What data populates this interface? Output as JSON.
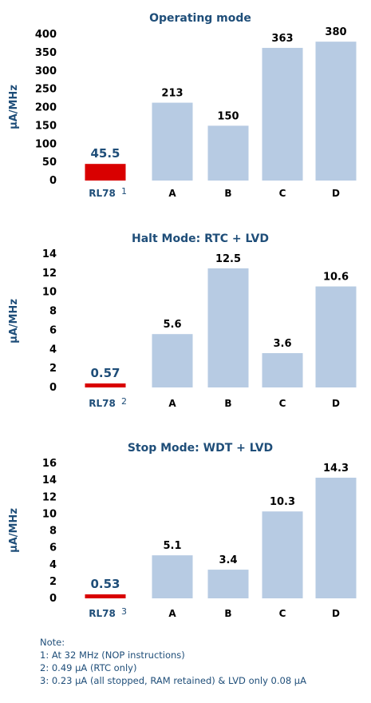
{
  "chart_data": [
    {
      "type": "bar",
      "title": "Operating mode",
      "ylabel": "µA/MHz",
      "ylim": [
        0,
        400
      ],
      "yticks": [
        0,
        50,
        100,
        150,
        200,
        250,
        300,
        350,
        400
      ],
      "categories": [
        "RL78",
        "A",
        "B",
        "C",
        "D"
      ],
      "category_footnotes": [
        "1",
        "",
        "",
        "",
        ""
      ],
      "values": [
        45.5,
        213,
        150,
        363,
        380
      ],
      "value_labels": [
        "45.5",
        "213",
        "150",
        "363",
        "380"
      ],
      "colors": [
        "#d90000",
        "#b7cbe3",
        "#b7cbe3",
        "#b7cbe3",
        "#b7cbe3"
      ],
      "grid": false,
      "legend": "none"
    },
    {
      "type": "bar",
      "title": "Halt Mode: RTC + LVD",
      "ylabel": "µA/MHz",
      "ylim": [
        0,
        14
      ],
      "yticks": [
        0,
        2,
        4,
        6,
        8,
        10,
        12,
        14
      ],
      "categories": [
        "RL78",
        "A",
        "B",
        "C",
        "D"
      ],
      "category_footnotes": [
        "2",
        "",
        "",
        "",
        ""
      ],
      "values": [
        0.57,
        5.6,
        12.5,
        3.6,
        10.6
      ],
      "value_labels": [
        "0.57",
        "5.6",
        "12.5",
        "3.6",
        "10.6"
      ],
      "colors": [
        "#d90000",
        "#b7cbe3",
        "#b7cbe3",
        "#b7cbe3",
        "#b7cbe3"
      ],
      "grid": false,
      "legend": "none"
    },
    {
      "type": "bar",
      "title": "Stop Mode: WDT + LVD",
      "ylabel": "µA/MHz",
      "ylim": [
        0,
        16
      ],
      "yticks": [
        0,
        2,
        4,
        6,
        8,
        10,
        12,
        14,
        16
      ],
      "categories": [
        "RL78",
        "A",
        "B",
        "C",
        "D"
      ],
      "category_footnotes": [
        "3",
        "",
        "",
        "",
        ""
      ],
      "values": [
        0.53,
        5.1,
        3.4,
        10.3,
        14.3
      ],
      "value_labels": [
        "0.53",
        "5.1",
        "3.4",
        "10.3",
        "14.3"
      ],
      "colors": [
        "#d90000",
        "#b7cbe3",
        "#b7cbe3",
        "#b7cbe3",
        "#b7cbe3"
      ],
      "grid": false,
      "legend": "none"
    }
  ],
  "notes": {
    "heading": "Note:",
    "lines": [
      "1: At 32 MHz (NOP instructions)",
      "2: 0.49 µA (RTC only)",
      "3: 0.23 µA (all stopped, RAM retained) & LVD only 0.08 µA"
    ]
  }
}
